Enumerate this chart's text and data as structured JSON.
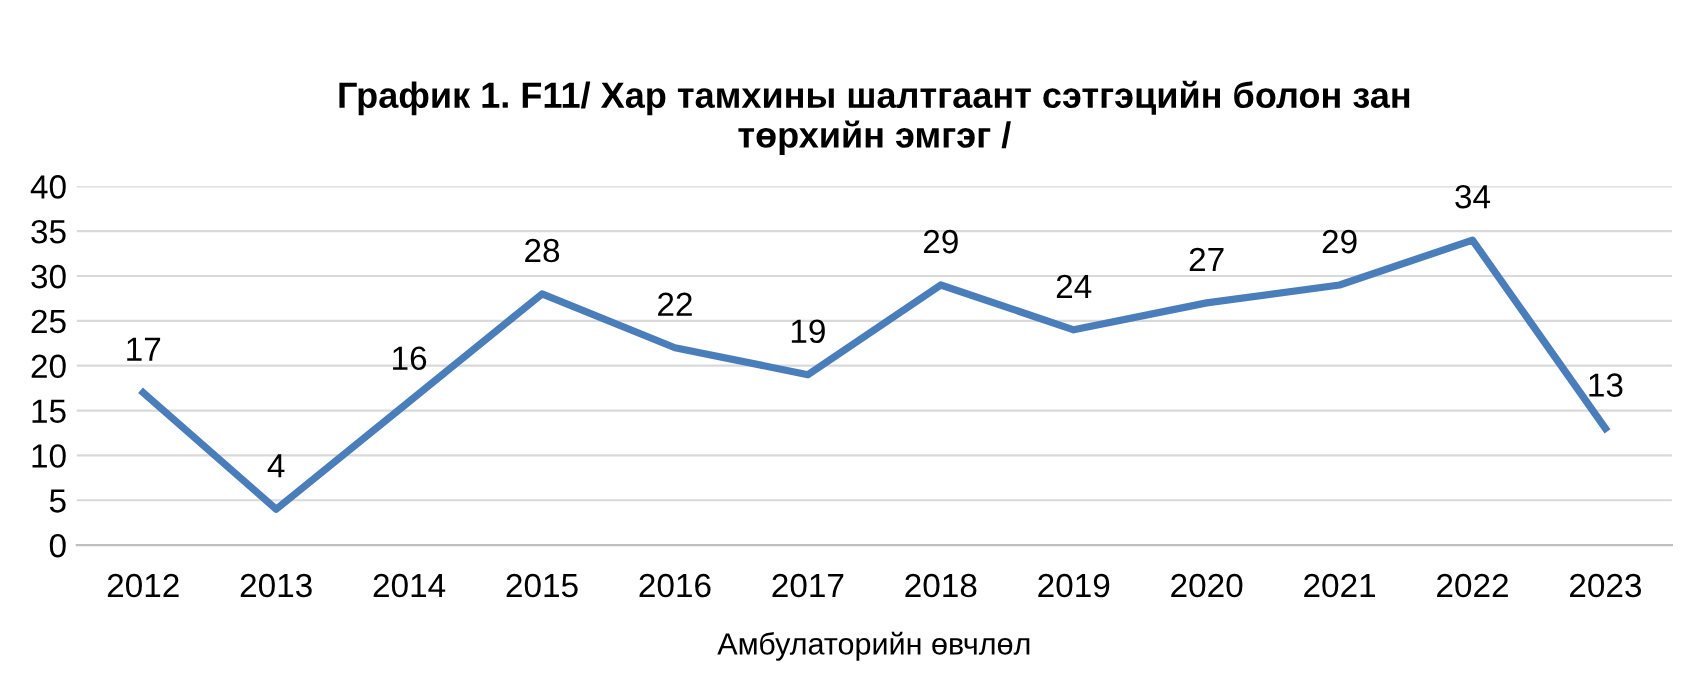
{
  "chart_data": {
    "type": "line",
    "title": "График 1. F11/ Хар тамхины шалтгаант сэтгэцийн болон зан\nтөрхийн эмгэг /",
    "categories": [
      "2012",
      "2013",
      "2014",
      "2015",
      "2016",
      "2017",
      "2018",
      "2019",
      "2020",
      "2021",
      "2022",
      "2023"
    ],
    "xlabel": "Амбулаторийн өвчлөл",
    "series": [
      {
        "color": "#4a7ebb",
        "values": [
          17,
          4,
          16,
          28,
          22,
          19,
          29,
          24,
          27,
          29,
          34,
          13
        ]
      }
    ],
    "ylim": [
      0,
      40
    ],
    "yticks": [
      0,
      5,
      10,
      15,
      20,
      25,
      30,
      35,
      40
    ],
    "grid": "y",
    "data_labels": true,
    "marker": "none",
    "line_style": "solid",
    "legend": false
  }
}
